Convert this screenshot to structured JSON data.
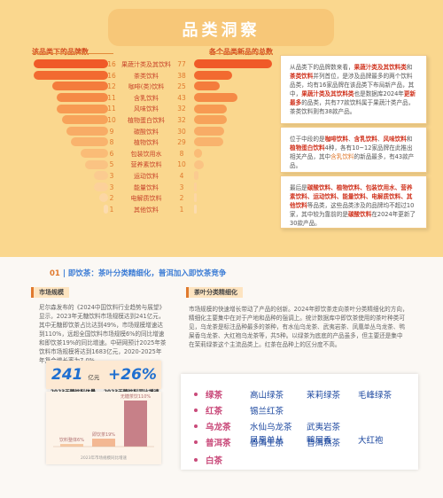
{
  "header": {
    "title": "品类洞察",
    "left_head": "该品类下的品牌数",
    "right_head": "各个品类新品的总数"
  },
  "chart_data": {
    "type": "bar",
    "title": "品类洞察",
    "categories": [
      "果蔬汁类及其饮料",
      "茶类饮料",
      "咖啡(类)饮料",
      "含乳饮料",
      "风味饮料",
      "植物蛋白饮料",
      "碳酸饮料",
      "植物饮料",
      "包装饮用水",
      "营养素饮料",
      "运动饮料",
      "能量饮料",
      "电解质饮料",
      "其他饮料"
    ],
    "series": [
      {
        "name": "该品类下的品牌数",
        "values": [
          16,
          16,
          12,
          11,
          11,
          10,
          9,
          8,
          6,
          5,
          3,
          3,
          2,
          1
        ]
      },
      {
        "name": "各个品类新品的总数",
        "values": [
          77,
          38,
          25,
          43,
          32,
          32,
          30,
          29,
          8,
          10,
          4,
          3,
          2,
          1
        ]
      }
    ]
  },
  "colors": {
    "left": [
      "#f05a28",
      "#f26a30",
      "#f47c3c",
      "#f58a46",
      "#f79a52",
      "#f7a35a",
      "#f8ac66",
      "#f9b36d",
      "#fabc77",
      "#fac383",
      "#fbcb90",
      "#fcd19a",
      "#fcd7a4",
      "#fcdcaf"
    ]
  },
  "notes": {
    "n1": [
      {
        "t": "从品类下的品牌数来看，"
      },
      {
        "t": "果蔬汁类及其饮料类",
        "c": "hl"
      },
      {
        "t": "和"
      },
      {
        "t": "茶类饮料",
        "c": "hl"
      },
      {
        "t": "并列首位，是涉及品牌最多的两个饮料品类，均有16家品牌在该品类下布局新产品，其中，"
      },
      {
        "t": "果蔬汁类及其饮料类",
        "c": "hl"
      },
      {
        "t": "也是数据库2024年"
      },
      {
        "t": "更新最多",
        "c": "hl"
      },
      {
        "t": "的品类，共有77款饮料属于果蔬汁类产品，茶类饮料则有38款产品。"
      }
    ],
    "n2": [
      {
        "t": "位于中段的是"
      },
      {
        "t": "咖啡饮料",
        "c": "hl"
      },
      {
        "t": "、"
      },
      {
        "t": "含乳饮料",
        "c": "hl"
      },
      {
        "t": "、"
      },
      {
        "t": "风味饮料",
        "c": "hl"
      },
      {
        "t": "和"
      },
      {
        "t": "植物蛋白饮料",
        "c": "hl"
      },
      {
        "t": "4种，各有10~12家品牌在此推出相关产品，其中"
      },
      {
        "t": "含乳饮料",
        "c": "hl2"
      },
      {
        "t": "的新品最多，有43款产品。"
      }
    ],
    "n3": [
      {
        "t": "最后是"
      },
      {
        "t": "碳酸饮料、植物饮料、包装饮用水、营养素饮料、运动饮料、能量饮料、电解质饮料、其他饮料",
        "c": "hl"
      },
      {
        "t": "等品类，这些品类涉及的品牌均不超过10家，其中较为靠前的是"
      },
      {
        "t": "碳酸饮料",
        "c": "hl"
      },
      {
        "t": "在2024年更新了30款产品。"
      }
    ]
  },
  "section": {
    "num": "01",
    "sep": "|",
    "title": "即饮茶：茶叶分类精细化，普洱加入即饮茶竞争"
  },
  "tabs": {
    "market": "市场规模",
    "tea": "茶叶分类精细化"
  },
  "market_text": "尼尔森发布的《2024中国饮料行业趋势与展望》显示，2023年无糖饮料市场规模达到241亿元，其中无糖即饮茶占比达到49%，市场规模增速达到110%，远超全国饮料市场规模6%的同比增速和即饮茶19%的同比增速。中研网预计2025年茶饮料市场规模将达到1683亿元，2020-2025年年复合增长率为7.0%。",
  "tea_text": "市场规模的快速增长带动了产品的创新。2024年即饮茶走向茶叶分类精细化的方向，精细化主要集中在对于产地和品种的强调上。统计数据库中即饮茶使用的茶叶种类可见，乌龙茶是标注品种最多的茶种，有水仙乌龙茶、武夷岩茶、凤凰单丛乌龙茶、鸭屎香乌龙茶、大红袍乌龙茶等，共5种。以绿茶为底底的产品虽多，但主要还是集中在茉莉绿茶这个主流品类上。红茶在品种上的区分度不高。",
  "stats": {
    "v1": "241",
    "u1": "亿元",
    "l1": "2023无糖饮料体量",
    "v2": "+26%",
    "l2": "2023无糖饮料同比增速"
  },
  "mini_chart": {
    "type": "bar",
    "categories": [
      "饮料整体6%",
      "即饮茶19%",
      "无糖茶饮110%"
    ],
    "values": [
      6,
      19,
      110
    ],
    "caption": "2023年市场规模同比增速"
  },
  "tea_types": [
    {
      "kind": "绿茶",
      "items": [
        "高山绿茶",
        "茉莉绿茶",
        "毛峰绿茶"
      ]
    },
    {
      "kind": "红茶",
      "items": [
        "锡兰红茶"
      ]
    },
    {
      "kind": "乌龙茶",
      "items": [
        "水仙乌龙茶",
        "武夷岩茶",
        "凤凰单丛",
        "鸭屎香",
        "大红袍"
      ]
    },
    {
      "kind": "普洱茶",
      "items": [
        "普洱生茶",
        "普洱熟茶"
      ]
    },
    {
      "kind": "白茶",
      "items": []
    }
  ]
}
